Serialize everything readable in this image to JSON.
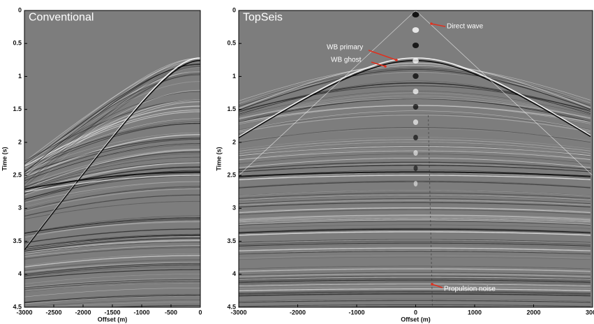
{
  "chart_data": [
    {
      "type": "seismic",
      "title": "Conventional",
      "xlabel": "Offset (m)",
      "ylabel": "Time (s)",
      "xlim": [
        -3000,
        0
      ],
      "xticks": [
        -3000,
        -2500,
        -2000,
        -1500,
        -1000,
        -500,
        0
      ],
      "ylim": [
        0,
        4.5
      ],
      "yticks": [
        0,
        0.5,
        1,
        1.5,
        2,
        2.5,
        3,
        3.5,
        4,
        4.5
      ],
      "y_reversed": true,
      "annotations": []
    },
    {
      "type": "seismic",
      "title": "TopSeis",
      "xlabel": "Offset (m)",
      "ylabel": "Time (s)",
      "xlim": [
        -3000,
        3000
      ],
      "xticks": [
        -3000,
        -2000,
        -1000,
        0,
        1000,
        2000,
        3000
      ],
      "ylim": [
        0,
        4.5
      ],
      "yticks": [
        0,
        0.5,
        1,
        1.5,
        2,
        2.5,
        3,
        3.5,
        4,
        4.5
      ],
      "y_reversed": true,
      "annotations": [
        "Direct wave",
        "WB primary",
        "WB ghost",
        "Propulsion noise"
      ]
    }
  ]
}
